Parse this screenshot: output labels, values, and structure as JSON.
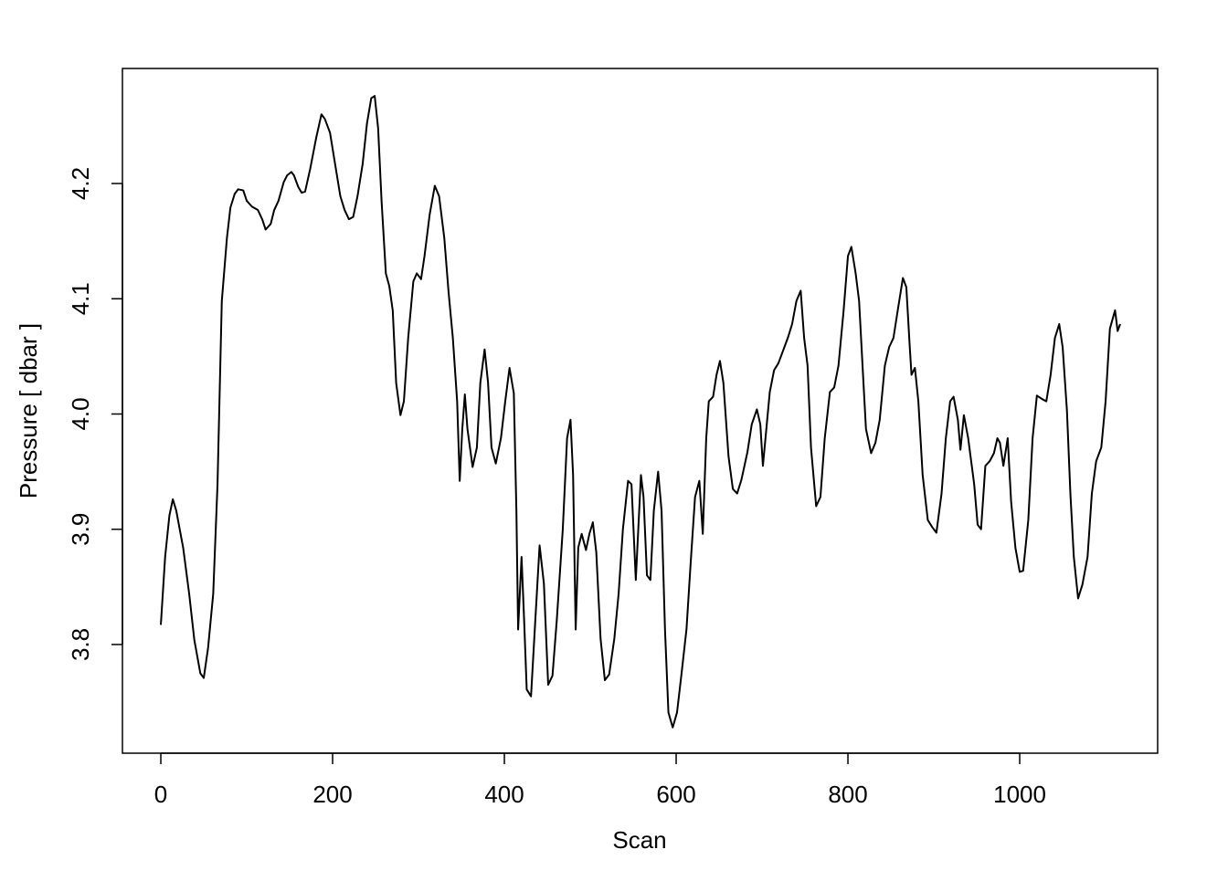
{
  "chart_data": {
    "type": "line",
    "x_label": "Scan",
    "y_label": "Pressure [ dbar ]",
    "color": "#000000",
    "x": [
      0,
      5,
      10,
      14,
      18,
      26,
      33,
      39,
      46,
      50,
      55,
      61,
      66,
      71,
      77,
      81,
      86,
      90,
      96,
      100,
      106,
      113,
      118,
      122,
      128,
      132,
      137,
      143,
      147,
      152,
      155,
      160,
      164,
      168,
      174,
      181,
      187,
      191,
      197,
      202,
      209,
      214,
      219,
      224,
      229,
      235,
      240,
      245,
      249,
      253,
      257,
      262,
      266,
      270,
      274,
      279,
      283,
      288,
      294,
      298,
      303,
      307,
      313,
      319,
      324,
      330,
      335,
      340,
      345,
      348,
      351,
      354,
      357,
      363,
      368,
      372,
      377,
      381,
      385,
      390,
      396,
      401,
      406,
      411,
      414,
      416,
      420,
      423,
      426,
      431,
      436,
      441,
      446,
      451,
      456,
      461,
      468,
      473,
      477,
      480,
      483,
      486,
      490,
      495,
      499,
      503,
      507,
      512,
      517,
      522,
      528,
      533,
      538,
      544,
      548,
      553,
      559,
      562,
      566,
      570,
      574,
      579,
      583,
      587,
      591,
      596,
      601,
      606,
      612,
      617,
      622,
      627,
      631,
      635,
      638,
      643,
      647,
      651,
      655,
      661,
      666,
      671,
      676,
      683,
      688,
      694,
      698,
      701,
      705,
      709,
      714,
      719,
      724,
      730,
      735,
      740,
      745,
      749,
      753,
      757,
      763,
      768,
      773,
      779,
      784,
      789,
      795,
      800,
      804,
      809,
      813,
      817,
      821,
      827,
      832,
      837,
      843,
      848,
      853,
      858,
      864,
      868,
      872,
      874,
      878,
      882,
      887,
      893,
      898,
      903,
      909,
      914,
      919,
      923,
      928,
      931,
      935,
      940,
      947,
      951,
      955,
      960,
      965,
      970,
      974,
      977,
      981,
      986,
      990,
      995,
      1000,
      1004,
      1010,
      1015,
      1020,
      1026,
      1031,
      1036,
      1041,
      1046,
      1050,
      1055,
      1059,
      1063,
      1068,
      1073,
      1079,
      1084,
      1089,
      1095,
      1100,
      1105,
      1111,
      1114,
      1117
    ],
    "values": [
      3.817,
      3.876,
      3.912,
      3.926,
      3.916,
      3.884,
      3.844,
      3.804,
      3.775,
      3.771,
      3.797,
      3.844,
      3.939,
      4.098,
      4.153,
      4.179,
      4.191,
      4.195,
      4.194,
      4.185,
      4.18,
      4.177,
      4.169,
      4.16,
      4.165,
      4.177,
      4.185,
      4.201,
      4.207,
      4.21,
      4.207,
      4.197,
      4.192,
      4.193,
      4.213,
      4.24,
      4.26,
      4.256,
      4.244,
      4.221,
      4.189,
      4.177,
      4.169,
      4.171,
      4.189,
      4.217,
      4.252,
      4.274,
      4.276,
      4.248,
      4.185,
      4.122,
      4.111,
      4.09,
      4.027,
      3.999,
      4.011,
      4.066,
      4.115,
      4.122,
      4.117,
      4.137,
      4.173,
      4.198,
      4.189,
      4.153,
      4.106,
      4.066,
      4.011,
      3.942,
      3.987,
      4.017,
      3.987,
      3.954,
      3.971,
      4.027,
      4.056,
      4.027,
      3.971,
      3.957,
      3.979,
      4.011,
      4.04,
      4.018,
      3.916,
      3.813,
      3.876,
      3.821,
      3.761,
      3.755,
      3.821,
      3.886,
      3.853,
      3.765,
      3.773,
      3.821,
      3.9,
      3.979,
      3.995,
      3.947,
      3.813,
      3.884,
      3.896,
      3.882,
      3.896,
      3.906,
      3.88,
      3.805,
      3.769,
      3.774,
      3.805,
      3.844,
      3.9,
      3.942,
      3.939,
      3.856,
      3.947,
      3.928,
      3.86,
      3.856,
      3.916,
      3.95,
      3.916,
      3.813,
      3.741,
      3.728,
      3.741,
      3.773,
      3.813,
      3.872,
      3.928,
      3.942,
      3.896,
      3.979,
      4.011,
      4.015,
      4.034,
      4.046,
      4.027,
      3.963,
      3.935,
      3.931,
      3.943,
      3.967,
      3.991,
      4.004,
      3.991,
      3.955,
      3.987,
      4.019,
      4.038,
      4.044,
      4.054,
      4.066,
      4.078,
      4.098,
      4.107,
      4.066,
      4.042,
      3.971,
      3.92,
      3.928,
      3.979,
      4.019,
      4.023,
      4.042,
      4.09,
      4.137,
      4.145,
      4.122,
      4.098,
      4.042,
      3.987,
      3.966,
      3.975,
      3.995,
      4.042,
      4.058,
      4.066,
      4.09,
      4.118,
      4.11,
      4.058,
      4.034,
      4.04,
      4.011,
      3.947,
      3.908,
      3.902,
      3.897,
      3.931,
      3.979,
      4.011,
      4.015,
      3.995,
      3.969,
      3.999,
      3.979,
      3.939,
      3.904,
      3.9,
      3.955,
      3.959,
      3.966,
      3.979,
      3.975,
      3.955,
      3.979,
      3.924,
      3.884,
      3.863,
      3.864,
      3.908,
      3.979,
      4.016,
      4.013,
      4.011,
      4.034,
      4.066,
      4.078,
      4.058,
      4.003,
      3.931,
      3.876,
      3.84,
      3.852,
      3.876,
      3.931,
      3.959,
      3.971,
      4.011,
      4.074,
      4.09,
      4.072,
      4.078
    ],
    "xlim": [
      -44.7,
      1160.6
    ],
    "ylim": [
      3.7057,
      4.2998
    ],
    "xticks": [
      0,
      200,
      400,
      600,
      800,
      1000
    ],
    "yticks": [
      3.8,
      3.9,
      {
        "value": 4,
        "label": "4.0"
      },
      4.1,
      4.2
    ]
  }
}
